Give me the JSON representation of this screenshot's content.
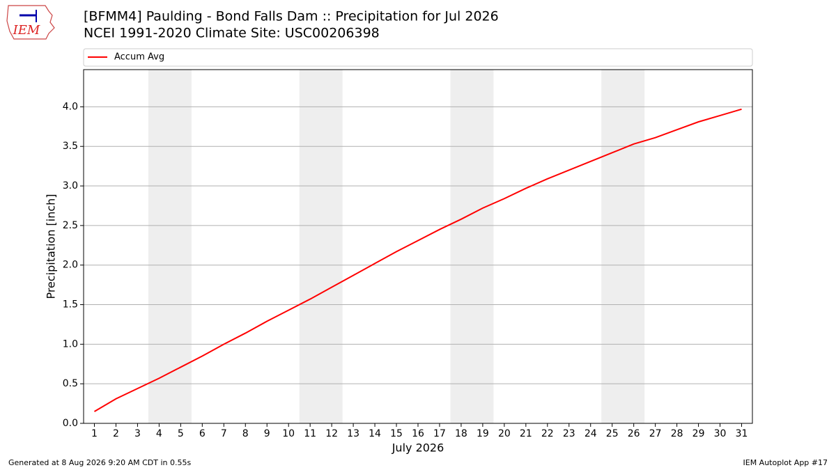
{
  "chart_data": {
    "type": "line",
    "title": "[BFMM4] Paulding - Bond Falls Dam :: Precipitation for Jul 2026",
    "subtitle": "NCEI 1991-2020 Climate Site: USC00206398",
    "logo": "IEM",
    "x_label": "July 2026",
    "y_label": "Precipitation [inch]",
    "footer_left": "Generated at 8 Aug 2026 9:20 AM CDT in 0.55s",
    "footer_right": "IEM Autoplot App #17",
    "x": [
      1,
      2,
      3,
      4,
      5,
      6,
      7,
      8,
      9,
      10,
      11,
      12,
      13,
      14,
      15,
      16,
      17,
      18,
      19,
      20,
      21,
      22,
      23,
      24,
      25,
      26,
      27,
      28,
      29,
      30,
      31
    ],
    "xlim": [
      0.5,
      31.5
    ],
    "xticks": [
      1,
      2,
      3,
      4,
      5,
      6,
      7,
      8,
      9,
      10,
      11,
      12,
      13,
      14,
      15,
      16,
      17,
      18,
      19,
      20,
      21,
      22,
      23,
      24,
      25,
      26,
      27,
      28,
      29,
      30,
      31
    ],
    "ylim": [
      0,
      4.47
    ],
    "yticks": [
      {
        "value": 0,
        "label": "0.0"
      },
      0.5,
      {
        "value": 1,
        "label": "1.0"
      },
      1.5,
      {
        "value": 2,
        "label": "2.0"
      },
      2.5,
      {
        "value": 3,
        "label": "3.0"
      },
      3.5,
      {
        "value": 4,
        "label": "4.0"
      }
    ],
    "grid": true,
    "shaded_spans": [
      [
        3.5,
        5.5
      ],
      [
        10.5,
        12.5
      ],
      [
        17.5,
        19.5
      ],
      [
        24.5,
        26.5
      ]
    ],
    "shade_color": "#eeeeee",
    "legend_position": "top",
    "series": [
      {
        "name": "Accum Avg",
        "color": "#ff0000",
        "values": [
          0.15,
          0.31,
          0.44,
          0.57,
          0.71,
          0.85,
          1.0,
          1.14,
          1.29,
          1.43,
          1.57,
          1.72,
          1.87,
          2.02,
          2.17,
          2.31,
          2.45,
          2.58,
          2.72,
          2.84,
          2.97,
          3.09,
          3.2,
          3.31,
          3.42,
          3.53,
          3.61,
          3.71,
          3.81,
          3.89,
          3.97
        ]
      }
    ]
  }
}
